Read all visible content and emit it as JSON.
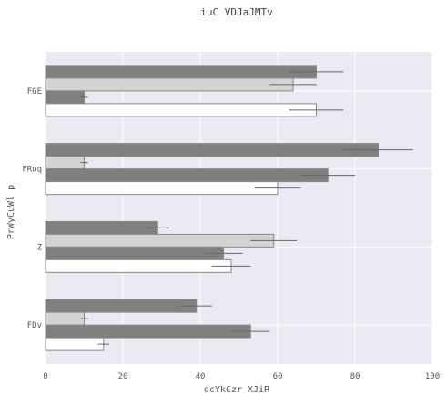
{
  "chart_data": {
    "type": "bar",
    "orientation": "horizontal",
    "title": "iuC VDJaJMTv",
    "xlabel": "dcYkCzr XJiR",
    "ylabel": "PrWyCuWl p",
    "categories": [
      "FGE",
      "FRoq",
      "Z",
      "FDv"
    ],
    "xlim": [
      0,
      100
    ],
    "xticks": [
      0,
      20,
      40,
      60,
      80,
      100
    ],
    "grid": true,
    "legend": "none",
    "series": [
      {
        "values": [
          70,
          86,
          29,
          39
        ],
        "errors": [
          7,
          9,
          3,
          4
        ],
        "color": "#808080"
      },
      {
        "values": [
          64,
          10,
          59,
          10
        ],
        "errors": [
          6,
          1,
          6,
          1
        ],
        "color": "#d3d3d3"
      },
      {
        "values": [
          10,
          73,
          46,
          53
        ],
        "errors": [
          1,
          7,
          5,
          5
        ],
        "color": "#808080"
      },
      {
        "values": [
          70,
          60,
          48,
          15
        ],
        "errors": [
          7,
          6,
          5,
          1.5
        ],
        "color": "#ffffff"
      }
    ],
    "colors": {
      "plot_background": "#eaeaf2",
      "grid": "#ffffff",
      "bar_edge": "#888888",
      "error_bar": "#666666"
    }
  }
}
